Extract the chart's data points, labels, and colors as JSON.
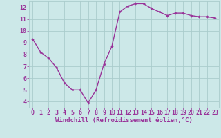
{
  "hours": [
    0,
    1,
    2,
    3,
    4,
    5,
    6,
    7,
    8,
    9,
    10,
    11,
    12,
    13,
    14,
    15,
    16,
    17,
    18,
    19,
    20,
    21,
    22,
    23
  ],
  "values": [
    9.3,
    8.2,
    7.7,
    6.9,
    5.6,
    5.0,
    5.0,
    3.9,
    5.0,
    7.2,
    8.7,
    11.6,
    12.1,
    12.3,
    12.3,
    11.9,
    11.6,
    11.3,
    11.5,
    11.5,
    11.3,
    11.2,
    11.2,
    11.1
  ],
  "line_color": "#993399",
  "marker": "D",
  "marker_size": 1.8,
  "bg_color": "#cce8e8",
  "grid_color": "#aacccc",
  "xlabel": "Windchill (Refroidissement éolien,°C)",
  "xlim": [
    -0.5,
    23.5
  ],
  "ylim": [
    3.5,
    12.5
  ],
  "yticks": [
    4,
    5,
    6,
    7,
    8,
    9,
    10,
    11,
    12
  ],
  "xtick_labels": [
    "0",
    "1",
    "2",
    "3",
    "4",
    "5",
    "6",
    "7",
    "8",
    "9",
    "10",
    "11",
    "12",
    "13",
    "14",
    "15",
    "16",
    "17",
    "18",
    "19",
    "20",
    "21",
    "22",
    "23"
  ],
  "tick_color": "#993399",
  "label_color": "#993399",
  "font": "monospace",
  "label_fontsize": 6.5,
  "tick_fontsize": 6.0,
  "line_width": 1.0
}
